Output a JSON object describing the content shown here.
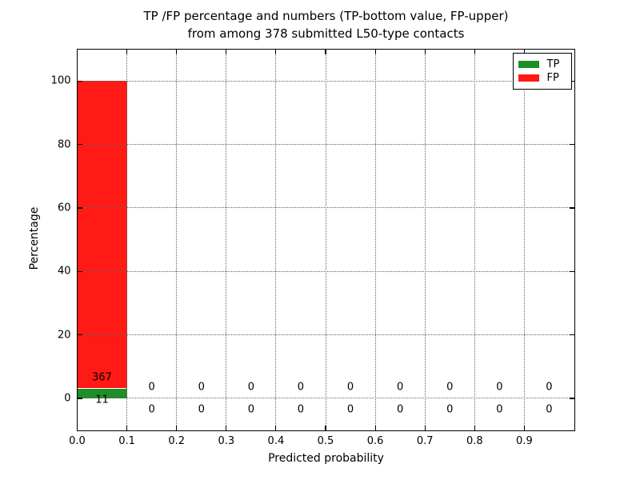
{
  "figure": {
    "title_line1": "TP /FP percentage and numbers (TP-bottom value, FP-upper)",
    "title_line2": "from among 378 submitted L50-type contacts",
    "xlabel": "Predicted probability",
    "ylabel": "Percentage",
    "background_color": "#ffffff"
  },
  "legend": {
    "position": "upper-right",
    "items": [
      {
        "label": "TP",
        "color": "#1e8e26"
      },
      {
        "label": "FP",
        "color": "#ff1a15"
      }
    ]
  },
  "chart_data": {
    "type": "bar",
    "stacked": true,
    "title": "TP /FP percentage and numbers (TP-bottom value, FP-upper) from among 378 submitted L50-type contacts",
    "xlabel": "Predicted probability",
    "ylabel": "Percentage",
    "total_contacts": 378,
    "bin_edges": [
      0.0,
      0.1,
      0.2,
      0.3,
      0.4,
      0.5,
      0.6,
      0.7,
      0.8,
      0.9,
      1.0
    ],
    "categories": [
      "0.0-0.1",
      "0.1-0.2",
      "0.2-0.3",
      "0.3-0.4",
      "0.4-0.5",
      "0.5-0.6",
      "0.6-0.7",
      "0.7-0.8",
      "0.8-0.9",
      "0.9-1.0"
    ],
    "series": [
      {
        "name": "TP",
        "color": "#1e8e26",
        "counts": [
          11,
          0,
          0,
          0,
          0,
          0,
          0,
          0,
          0,
          0
        ],
        "percentages": [
          2.91,
          0,
          0,
          0,
          0,
          0,
          0,
          0,
          0,
          0
        ]
      },
      {
        "name": "FP",
        "color": "#ff1a15",
        "counts": [
          367,
          0,
          0,
          0,
          0,
          0,
          0,
          0,
          0,
          0
        ],
        "percentages": [
          97.09,
          0,
          0,
          0,
          0,
          0,
          0,
          0,
          0,
          0
        ]
      }
    ],
    "xlim": [
      0.0,
      1.0
    ],
    "ylim": [
      -10,
      110
    ],
    "xticks": [
      "0.0",
      "0.1",
      "0.2",
      "0.3",
      "0.4",
      "0.5",
      "0.6",
      "0.7",
      "0.8",
      "0.9"
    ],
    "yticks": [
      0,
      20,
      40,
      60,
      80,
      100
    ],
    "grid": true,
    "grid_style": "dotted",
    "legend_position": "upper right",
    "count_label_offset_pct": 3.5
  }
}
